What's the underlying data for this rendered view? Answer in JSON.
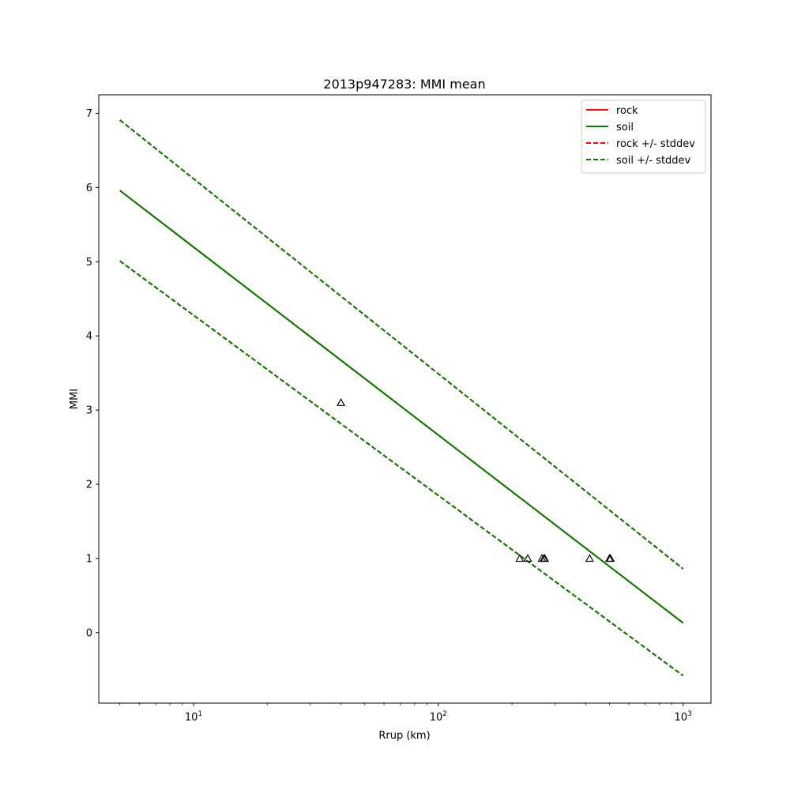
{
  "chart_data": {
    "type": "line",
    "title": "2013p947283: MMI mean",
    "xlabel": "Rrup (km)",
    "ylabel": "MMI",
    "xscale": "log",
    "xlim": [
      4.1,
      1300
    ],
    "ylim": [
      -0.95,
      7.25
    ],
    "grid": false,
    "legend_position": "top-right",
    "x_ticks": [
      {
        "value": 10,
        "base": "10",
        "exp": "1"
      },
      {
        "value": 100,
        "base": "10",
        "exp": "2"
      },
      {
        "value": 1000,
        "base": "10",
        "exp": "3"
      }
    ],
    "y_ticks": [
      0,
      1,
      2,
      3,
      4,
      5,
      6,
      7
    ],
    "series": [
      {
        "name": "rock",
        "color": "#ff0000",
        "dash": "solid",
        "x": [
          5,
          1000
        ],
        "y": [
          5.96,
          0.13
        ]
      },
      {
        "name": "soil",
        "color": "#008000",
        "dash": "solid",
        "x": [
          5,
          1000
        ],
        "y": [
          5.96,
          0.13
        ]
      },
      {
        "name": "rock +/- stddev",
        "color": "#ff0000",
        "dash": "dashed",
        "x": [
          5,
          1000
        ],
        "y": [
          6.91,
          0.86
        ],
        "x2": [
          5,
          1000
        ],
        "y2": [
          5.01,
          -0.58
        ]
      },
      {
        "name": "soil +/- stddev",
        "color": "#008000",
        "dash": "dashed",
        "x": [
          5,
          1000
        ],
        "y": [
          6.91,
          0.86
        ],
        "x2": [
          5,
          1000
        ],
        "y2": [
          5.01,
          -0.58
        ]
      }
    ],
    "observations": {
      "marker": "triangle-open",
      "color": "#000000",
      "points": [
        {
          "x": 40,
          "y": 3.1
        },
        {
          "x": 215,
          "y": 1
        },
        {
          "x": 232,
          "y": 1
        },
        {
          "x": 265,
          "y": 1
        },
        {
          "x": 270,
          "y": 1
        },
        {
          "x": 272,
          "y": 1
        },
        {
          "x": 415,
          "y": 1
        },
        {
          "x": 500,
          "y": 1
        },
        {
          "x": 505,
          "y": 1
        }
      ]
    }
  }
}
